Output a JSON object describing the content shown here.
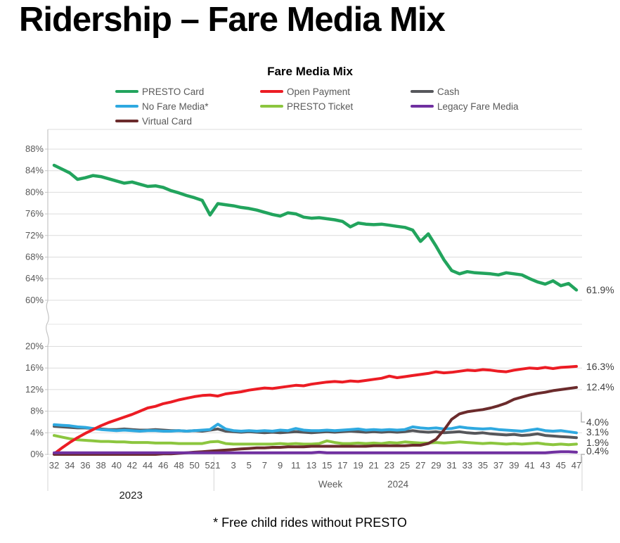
{
  "page": {
    "title": "Ridership – Fare Media Mix"
  },
  "chart_data": {
    "type": "line",
    "title": "Fare Media Mix",
    "footnote": "* Free child rides without PRESTO",
    "legend_position": "top",
    "grid": true,
    "x_axis": {
      "label": "Week",
      "year_groups": [
        {
          "year": "2023",
          "weeks": [
            32,
            33,
            34,
            35,
            36,
            37,
            38,
            39,
            40,
            41,
            42,
            43,
            44,
            45,
            46,
            47,
            48,
            49,
            50,
            51,
            52
          ]
        },
        {
          "year": "2024",
          "weeks": [
            1,
            2,
            3,
            4,
            5,
            6,
            7,
            8,
            9,
            10,
            11,
            12,
            13,
            14,
            15,
            16,
            17,
            18,
            19,
            20,
            21,
            22,
            23,
            24,
            25,
            26,
            27,
            28,
            29,
            30,
            31,
            32,
            33,
            34,
            35,
            36,
            37,
            38,
            39,
            40,
            41,
            42,
            43,
            44,
            45,
            46,
            47
          ]
        }
      ],
      "tick_labels": [
        "32",
        "34",
        "36",
        "38",
        "40",
        "42",
        "44",
        "46",
        "48",
        "50",
        "52",
        "3",
        "5",
        "7",
        "9",
        "11",
        "13",
        "15",
        "17",
        "19",
        "21",
        "23",
        "25",
        "27",
        "29",
        "31",
        "33",
        "35",
        "37",
        "39",
        "41",
        "43",
        "45",
        "47"
      ]
    },
    "y_axis": {
      "format": "percent",
      "broken_axis": true,
      "top_section": {
        "min": 60,
        "max": 88,
        "tick_values": [
          88,
          84,
          80,
          76,
          72,
          68,
          64,
          60
        ],
        "tick_labels": [
          "88%",
          "84%",
          "80%",
          "76%",
          "72%",
          "68%",
          "64%",
          "60%"
        ]
      },
      "bottom_section": {
        "min": 0,
        "max": 20,
        "tick_values": [
          20,
          16,
          12,
          8,
          4,
          0
        ],
        "tick_labels": [
          "20%",
          "16%",
          "12%",
          "8%",
          "4%",
          "0%"
        ]
      }
    },
    "series": [
      {
        "name": "PRESTO Card",
        "color": "#22A45D",
        "section": "top",
        "end_label": "61.9%",
        "values": [
          85.0,
          84.3,
          83.6,
          82.4,
          82.7,
          83.1,
          82.9,
          82.5,
          82.1,
          81.7,
          81.9,
          81.5,
          81.1,
          81.2,
          80.9,
          80.3,
          79.9,
          79.4,
          79.0,
          78.5,
          75.8,
          77.9,
          77.7,
          77.5,
          77.2,
          77.0,
          76.7,
          76.3,
          75.9,
          75.6,
          76.2,
          76.0,
          75.4,
          75.2,
          75.3,
          75.1,
          74.9,
          74.6,
          73.6,
          74.3,
          74.1,
          74.0,
          74.1,
          73.9,
          73.7,
          73.5,
          73.0,
          70.9,
          72.3,
          70.0,
          67.5,
          65.5,
          64.9,
          65.3,
          65.1,
          65.0,
          64.9,
          64.7,
          65.1,
          64.9,
          64.7,
          64.0,
          63.4,
          63.0,
          63.6,
          62.7,
          63.1,
          61.9
        ]
      },
      {
        "name": "Open Payment",
        "color": "#EC1C24",
        "section": "bottom",
        "end_label": "16.3%",
        "values": [
          0.1,
          1.2,
          2.2,
          3.1,
          3.9,
          4.6,
          5.3,
          5.9,
          6.4,
          6.9,
          7.4,
          8.0,
          8.6,
          8.9,
          9.4,
          9.7,
          10.1,
          10.4,
          10.7,
          10.9,
          11.0,
          10.8,
          11.2,
          11.4,
          11.6,
          11.9,
          12.1,
          12.3,
          12.2,
          12.4,
          12.6,
          12.8,
          12.7,
          13.0,
          13.2,
          13.4,
          13.5,
          13.4,
          13.6,
          13.5,
          13.7,
          13.9,
          14.1,
          14.5,
          14.2,
          14.4,
          14.6,
          14.8,
          15.0,
          15.3,
          15.1,
          15.2,
          15.4,
          15.6,
          15.5,
          15.7,
          15.6,
          15.4,
          15.3,
          15.6,
          15.8,
          16.0,
          15.9,
          16.1,
          15.9,
          16.1,
          16.2,
          16.3
        ]
      },
      {
        "name": "Cash",
        "color": "#56575B",
        "section": "bottom",
        "end_label": "3.1%",
        "values": [
          5.2,
          5.1,
          5.0,
          4.9,
          4.9,
          4.8,
          4.7,
          4.6,
          4.6,
          4.7,
          4.6,
          4.5,
          4.5,
          4.6,
          4.5,
          4.4,
          4.4,
          4.3,
          4.4,
          4.3,
          4.5,
          4.7,
          4.3,
          4.2,
          4.1,
          4.2,
          4.1,
          4.0,
          4.1,
          4.0,
          4.1,
          4.2,
          4.1,
          4.0,
          4.1,
          4.2,
          4.1,
          4.2,
          4.3,
          4.2,
          4.1,
          4.2,
          4.1,
          4.2,
          4.1,
          4.2,
          4.4,
          4.2,
          4.1,
          4.2,
          4.0,
          4.1,
          4.2,
          4.0,
          3.9,
          4.0,
          3.8,
          3.7,
          3.6,
          3.7,
          3.5,
          3.6,
          3.8,
          3.5,
          3.4,
          3.3,
          3.2,
          3.1
        ]
      },
      {
        "name": "No Fare Media*",
        "color": "#2FA9E0",
        "section": "bottom",
        "end_label": "4.0%",
        "values": [
          5.5,
          5.4,
          5.3,
          5.1,
          5.0,
          4.8,
          4.6,
          4.5,
          4.4,
          4.5,
          4.4,
          4.3,
          4.4,
          4.4,
          4.3,
          4.3,
          4.4,
          4.3,
          4.4,
          4.5,
          4.6,
          5.6,
          4.7,
          4.4,
          4.3,
          4.4,
          4.3,
          4.4,
          4.3,
          4.5,
          4.4,
          4.8,
          4.5,
          4.4,
          4.4,
          4.5,
          4.4,
          4.5,
          4.6,
          4.7,
          4.5,
          4.6,
          4.5,
          4.6,
          4.5,
          4.6,
          5.1,
          4.9,
          4.8,
          4.9,
          4.7,
          4.8,
          5.1,
          4.9,
          4.8,
          4.7,
          4.8,
          4.6,
          4.5,
          4.4,
          4.3,
          4.5,
          4.7,
          4.4,
          4.3,
          4.4,
          4.2,
          4.0
        ]
      },
      {
        "name": "PRESTO Ticket",
        "color": "#8CC63F",
        "section": "bottom",
        "end_label": "1.9%",
        "values": [
          3.5,
          3.2,
          2.9,
          2.7,
          2.6,
          2.5,
          2.4,
          2.4,
          2.3,
          2.3,
          2.2,
          2.2,
          2.2,
          2.1,
          2.1,
          2.1,
          2.0,
          2.0,
          2.0,
          2.0,
          2.3,
          2.4,
          2.0,
          1.9,
          1.9,
          1.9,
          1.9,
          1.9,
          1.9,
          2.0,
          1.9,
          2.0,
          1.9,
          1.9,
          2.0,
          2.5,
          2.2,
          2.0,
          2.0,
          2.1,
          2.0,
          2.1,
          2.0,
          2.2,
          2.1,
          2.3,
          2.2,
          2.1,
          2.1,
          2.2,
          2.1,
          2.2,
          2.3,
          2.2,
          2.1,
          2.0,
          2.1,
          2.0,
          1.9,
          2.0,
          1.9,
          2.0,
          2.1,
          1.9,
          1.8,
          1.9,
          1.8,
          1.9
        ]
      },
      {
        "name": "Legacy Fare Media",
        "color": "#7030A0",
        "section": "bottom",
        "end_label": "0.4%",
        "values": [
          0.3,
          0.3,
          0.3,
          0.3,
          0.3,
          0.3,
          0.3,
          0.3,
          0.3,
          0.3,
          0.3,
          0.3,
          0.3,
          0.3,
          0.3,
          0.3,
          0.3,
          0.3,
          0.3,
          0.3,
          0.3,
          0.3,
          0.3,
          0.3,
          0.3,
          0.3,
          0.3,
          0.3,
          0.3,
          0.3,
          0.3,
          0.3,
          0.3,
          0.3,
          0.4,
          0.3,
          0.3,
          0.3,
          0.3,
          0.3,
          0.3,
          0.3,
          0.3,
          0.3,
          0.3,
          0.3,
          0.3,
          0.3,
          0.3,
          0.3,
          0.3,
          0.3,
          0.3,
          0.3,
          0.3,
          0.3,
          0.3,
          0.3,
          0.3,
          0.3,
          0.3,
          0.3,
          0.3,
          0.3,
          0.4,
          0.5,
          0.5,
          0.4
        ]
      },
      {
        "name": "Virtual Card",
        "color": "#6B2B2C",
        "section": "bottom",
        "end_label": "12.4%",
        "values": [
          0,
          0,
          0,
          0,
          0,
          0,
          0,
          0,
          0,
          0,
          0,
          0,
          0,
          0,
          0.1,
          0.1,
          0.2,
          0.3,
          0.4,
          0.5,
          0.6,
          0.7,
          0.8,
          0.9,
          1.0,
          1.1,
          1.2,
          1.2,
          1.3,
          1.3,
          1.4,
          1.4,
          1.4,
          1.5,
          1.5,
          1.5,
          1.5,
          1.5,
          1.5,
          1.5,
          1.5,
          1.6,
          1.6,
          1.6,
          1.6,
          1.6,
          1.7,
          1.7,
          2.0,
          2.8,
          4.5,
          6.5,
          7.5,
          7.9,
          8.1,
          8.3,
          8.6,
          9.0,
          9.5,
          10.2,
          10.6,
          11.0,
          11.3,
          11.5,
          11.8,
          12.0,
          12.2,
          12.4
        ]
      }
    ]
  }
}
